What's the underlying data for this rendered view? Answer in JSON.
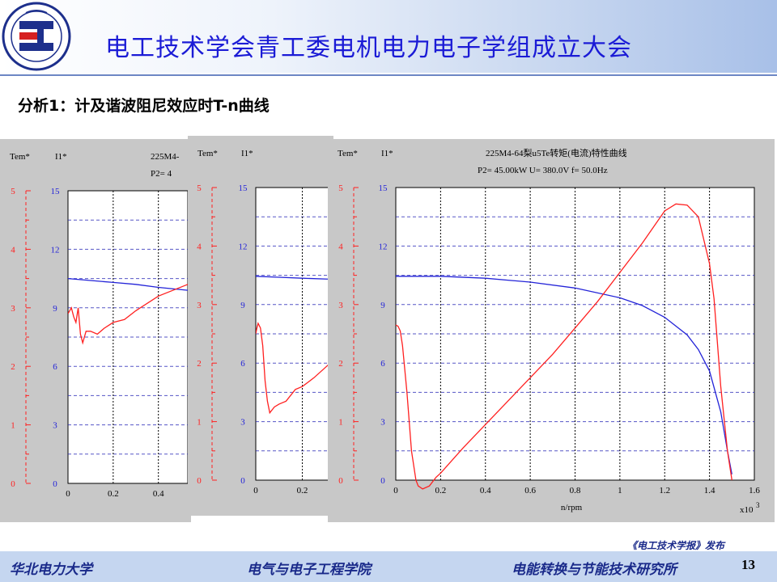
{
  "header": {
    "title": "电工技术学会青工委电机电力电子学组成立大会"
  },
  "slide": {
    "subtitle": "分析1：计及谐波阻尼效应时T-n曲线",
    "page_number": "13",
    "publisher": "《电工技术学报》发布"
  },
  "footer": {
    "left": "华北电力大学",
    "center": "电气与电子工程学院",
    "right": "电能转换与节能技术研究所"
  },
  "colors": {
    "torque": "#ff2020",
    "current": "#2323d8",
    "accent": "#1b1bd6"
  },
  "chart_data": [
    {
      "type": "line",
      "title": "225M4-",
      "info": "P2=   4",
      "left_axis_label": "Tem*",
      "right_axis_label": "I1*",
      "tem_ticks": [
        "5",
        "4",
        "3",
        "2",
        "1",
        "0"
      ],
      "i1_ticks": [
        "15",
        "12",
        "9",
        "6",
        "3",
        "0"
      ],
      "x_ticks": [
        "0",
        "0.2",
        "0.4"
      ],
      "xlim": [
        0,
        0.53
      ],
      "tem_lim": [
        0,
        5
      ],
      "i1_lim": [
        0,
        15
      ],
      "series": [
        {
          "axis": "i1",
          "values": [
            [
              0,
              10.5
            ],
            [
              0.1,
              10.4
            ],
            [
              0.2,
              10.3
            ],
            [
              0.3,
              10.2
            ],
            [
              0.4,
              10.05
            ],
            [
              0.53,
              9.9
            ]
          ]
        },
        {
          "axis": "tem",
          "values": [
            [
              0,
              2.9
            ],
            [
              0.015,
              3.0
            ],
            [
              0.025,
              2.85
            ],
            [
              0.035,
              2.75
            ],
            [
              0.045,
              3.0
            ],
            [
              0.055,
              2.55
            ],
            [
              0.065,
              2.4
            ],
            [
              0.08,
              2.6
            ],
            [
              0.1,
              2.6
            ],
            [
              0.13,
              2.55
            ],
            [
              0.16,
              2.65
            ],
            [
              0.2,
              2.75
            ],
            [
              0.25,
              2.8
            ],
            [
              0.3,
              2.95
            ],
            [
              0.4,
              3.2
            ],
            [
              0.53,
              3.4
            ]
          ]
        }
      ]
    },
    {
      "type": "line",
      "left_axis_label": "Tem*",
      "right_axis_label": "I1*",
      "tem_ticks": [
        "5",
        "4",
        "3",
        "2",
        "1",
        "0"
      ],
      "i1_ticks": [
        "15",
        "12",
        "9",
        "6",
        "3",
        "0"
      ],
      "x_ticks": [
        "0",
        "0.2"
      ],
      "xlim": [
        0,
        0.32
      ],
      "tem_lim": [
        0,
        5
      ],
      "i1_lim": [
        0,
        15
      ],
      "series": [
        {
          "axis": "i1",
          "values": [
            [
              0,
              10.45
            ],
            [
              0.1,
              10.4
            ],
            [
              0.2,
              10.35
            ],
            [
              0.32,
              10.3
            ]
          ]
        },
        {
          "axis": "tem",
          "values": [
            [
              0,
              2.5
            ],
            [
              0.005,
              2.6
            ],
            [
              0.01,
              2.68
            ],
            [
              0.02,
              2.6
            ],
            [
              0.03,
              2.3
            ],
            [
              0.04,
              1.7
            ],
            [
              0.05,
              1.35
            ],
            [
              0.06,
              1.15
            ],
            [
              0.08,
              1.25
            ],
            [
              0.1,
              1.3
            ],
            [
              0.13,
              1.35
            ],
            [
              0.17,
              1.55
            ],
            [
              0.2,
              1.6
            ],
            [
              0.25,
              1.75
            ],
            [
              0.32,
              2.0
            ]
          ]
        }
      ]
    },
    {
      "type": "line",
      "title": "225M4-64梨u5Te转矩(电流)特性曲线",
      "info": "P2=   45.00kW   U=  380.0V    f=  50.0Hz",
      "left_axis_label": "Tem*",
      "right_axis_label": "I1*",
      "xlabel": "n/rpm",
      "x_multiplier": "x10",
      "x_multiplier_exp": "3",
      "tem_ticks": [
        "5",
        "4",
        "3",
        "2",
        "1",
        "0"
      ],
      "i1_ticks": [
        "15",
        "12",
        "9",
        "6",
        "3",
        "0"
      ],
      "x_ticks": [
        "0",
        "0.2",
        "0.4",
        "0.6",
        "0.8",
        "1",
        "1.2",
        "1.4",
        "1.6"
      ],
      "xlim": [
        0,
        1.6
      ],
      "tem_lim": [
        0,
        5
      ],
      "i1_lim": [
        0,
        15
      ],
      "series": [
        {
          "axis": "i1",
          "values": [
            [
              0,
              10.45
            ],
            [
              0.2,
              10.45
            ],
            [
              0.4,
              10.35
            ],
            [
              0.6,
              10.15
            ],
            [
              0.8,
              9.85
            ],
            [
              1.0,
              9.35
            ],
            [
              1.1,
              8.95
            ],
            [
              1.2,
              8.35
            ],
            [
              1.3,
              7.45
            ],
            [
              1.35,
              6.7
            ],
            [
              1.4,
              5.6
            ],
            [
              1.45,
              3.5
            ],
            [
              1.48,
              1.5
            ],
            [
              1.5,
              0.3
            ]
          ]
        },
        {
          "axis": "tem",
          "values": [
            [
              0,
              2.65
            ],
            [
              0.01,
              2.63
            ],
            [
              0.02,
              2.55
            ],
            [
              0.03,
              2.3
            ],
            [
              0.05,
              1.5
            ],
            [
              0.07,
              0.5
            ],
            [
              0.09,
              0.0
            ],
            [
              0.1,
              -0.1
            ],
            [
              0.12,
              -0.15
            ],
            [
              0.15,
              -0.1
            ],
            [
              0.18,
              0.05
            ],
            [
              0.2,
              0.12
            ],
            [
              0.3,
              0.55
            ],
            [
              0.4,
              0.95
            ],
            [
              0.5,
              1.35
            ],
            [
              0.6,
              1.75
            ],
            [
              0.7,
              2.15
            ],
            [
              0.8,
              2.6
            ],
            [
              0.9,
              3.05
            ],
            [
              1.0,
              3.55
            ],
            [
              1.1,
              4.05
            ],
            [
              1.2,
              4.6
            ],
            [
              1.25,
              4.72
            ],
            [
              1.3,
              4.7
            ],
            [
              1.35,
              4.5
            ],
            [
              1.4,
              3.7
            ],
            [
              1.42,
              3.1
            ],
            [
              1.45,
              1.6
            ],
            [
              1.48,
              0.5
            ],
            [
              1.5,
              0.0
            ]
          ]
        }
      ]
    }
  ]
}
